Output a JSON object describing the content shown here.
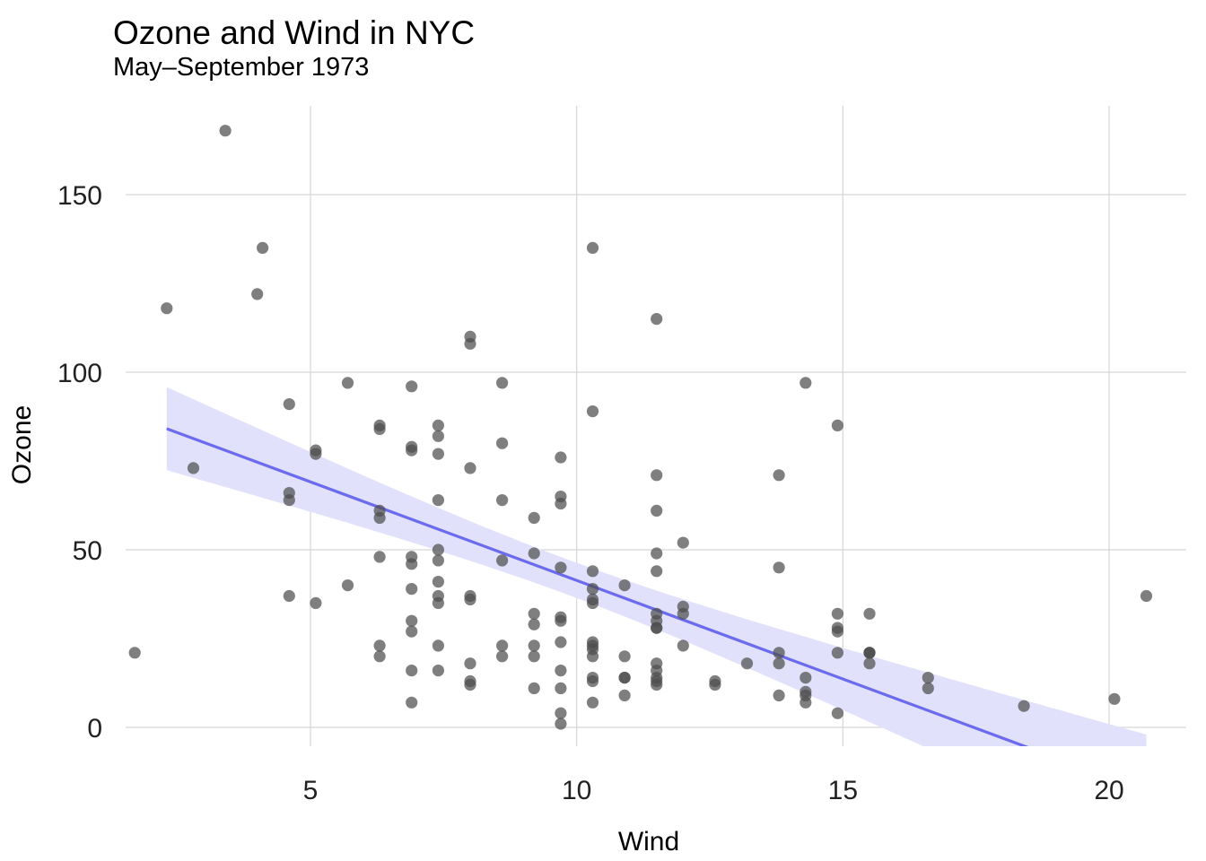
{
  "chart_data": {
    "type": "scatter",
    "title": "Ozone and Wind in NYC",
    "subtitle": "May–September 1973",
    "xlabel": "Wind",
    "ylabel": "Ozone",
    "xlim": [
      2.0,
      21.1
    ],
    "ylim": [
      -6,
      175
    ],
    "x_ticks": [
      5,
      10,
      15,
      20
    ],
    "y_ticks": [
      0,
      50,
      100,
      150
    ],
    "grid": true,
    "legend": "none",
    "colors": {
      "points": "#4d4d4d",
      "fit_line": "#6b6bef",
      "band": "#e1e1fb"
    },
    "points": [
      [
        7.4,
        41
      ],
      [
        8.0,
        36
      ],
      [
        12.6,
        12
      ],
      [
        11.5,
        18
      ],
      [
        8.6,
        23
      ],
      [
        20.1,
        8
      ],
      [
        9.7,
        16
      ],
      [
        9.2,
        11
      ],
      [
        10.9,
        14
      ],
      [
        13.2,
        18
      ],
      [
        11.5,
        14
      ],
      [
        12.0,
        34
      ],
      [
        18.4,
        6
      ],
      [
        11.5,
        30
      ],
      [
        9.7,
        11
      ],
      [
        9.7,
        1
      ],
      [
        16.6,
        11
      ],
      [
        9.7,
        4
      ],
      [
        12.0,
        32
      ],
      [
        7.4,
        23
      ],
      [
        13.8,
        45
      ],
      [
        11.5,
        115
      ],
      [
        8.0,
        37
      ],
      [
        14.9,
        4
      ],
      [
        20.7,
        37
      ],
      [
        9.2,
        29
      ],
      [
        11.5,
        71
      ],
      [
        10.3,
        39
      ],
      [
        6.3,
        23
      ],
      [
        1.7,
        21
      ],
      [
        4.6,
        37
      ],
      [
        6.3,
        20
      ],
      [
        8.0,
        12
      ],
      [
        8.0,
        13
      ],
      [
        10.3,
        135
      ],
      [
        11.5,
        49
      ],
      [
        14.9,
        32
      ],
      [
        8.6,
        64
      ],
      [
        5.7,
        40
      ],
      [
        7.4,
        77
      ],
      [
        8.6,
        97
      ],
      [
        14.3,
        97
      ],
      [
        14.9,
        85
      ],
      [
        14.3,
        10
      ],
      [
        6.9,
        27
      ],
      [
        10.3,
        7
      ],
      [
        6.3,
        48
      ],
      [
        5.1,
        35
      ],
      [
        11.5,
        61
      ],
      [
        6.9,
        79
      ],
      [
        9.7,
        63
      ],
      [
        11.5,
        16
      ],
      [
        8.6,
        80
      ],
      [
        8.0,
        108
      ],
      [
        8.6,
        20
      ],
      [
        12.0,
        52
      ],
      [
        7.4,
        82
      ],
      [
        7.4,
        50
      ],
      [
        7.4,
        64
      ],
      [
        9.2,
        59
      ],
      [
        6.9,
        39
      ],
      [
        13.8,
        9
      ],
      [
        7.4,
        16
      ],
      [
        4.0,
        122
      ],
      [
        10.3,
        89
      ],
      [
        8.0,
        110
      ],
      [
        11.5,
        44
      ],
      [
        11.5,
        28
      ],
      [
        9.7,
        65
      ],
      [
        2.8,
        73
      ],
      [
        3.4,
        168
      ],
      [
        4.1,
        135
      ],
      [
        6.9,
        78
      ],
      [
        9.7,
        45
      ],
      [
        10.3,
        44
      ],
      [
        11.5,
        28
      ],
      [
        6.3,
        85
      ],
      [
        6.9,
        96
      ],
      [
        8.0,
        73
      ],
      [
        8.6,
        47
      ],
      [
        9.7,
        24
      ],
      [
        9.2,
        32
      ],
      [
        13.8,
        21
      ],
      [
        11.5,
        13
      ],
      [
        10.3,
        23
      ],
      [
        14.3,
        7
      ],
      [
        14.9,
        21
      ],
      [
        5.7,
        97
      ],
      [
        9.7,
        30
      ],
      [
        16.6,
        14
      ],
      [
        12.6,
        13
      ],
      [
        8.0,
        18
      ],
      [
        10.3,
        24
      ],
      [
        4.6,
        91
      ],
      [
        6.3,
        59
      ],
      [
        10.9,
        9
      ],
      [
        9.2,
        20
      ],
      [
        10.9,
        40
      ],
      [
        12.0,
        23
      ],
      [
        9.7,
        31
      ],
      [
        15.5,
        18
      ],
      [
        10.9,
        14
      ],
      [
        10.3,
        14
      ],
      [
        10.3,
        13
      ],
      [
        11.5,
        12
      ],
      [
        10.3,
        20
      ],
      [
        2.3,
        118
      ],
      [
        4.6,
        66
      ],
      [
        13.8,
        18
      ],
      [
        6.9,
        30
      ],
      [
        10.9,
        20
      ],
      [
        14.3,
        9
      ],
      [
        15.5,
        21
      ],
      [
        13.8,
        71
      ],
      [
        14.9,
        27
      ],
      [
        15.5,
        32
      ],
      [
        4.6,
        64
      ],
      [
        5.1,
        78
      ],
      [
        5.1,
        77
      ],
      [
        6.3,
        84
      ],
      [
        6.3,
        61
      ],
      [
        6.9,
        46
      ],
      [
        6.9,
        48
      ],
      [
        6.9,
        7
      ],
      [
        7.4,
        35
      ],
      [
        7.4,
        47
      ],
      [
        7.4,
        85
      ],
      [
        9.2,
        49
      ],
      [
        10.3,
        36
      ],
      [
        10.3,
        35
      ],
      [
        11.5,
        32
      ],
      [
        15.5,
        21
      ],
      [
        14.3,
        14
      ],
      [
        15.5,
        21
      ],
      [
        9.2,
        23
      ],
      [
        6.9,
        16
      ],
      [
        7.4,
        37
      ],
      [
        9.7,
        76
      ],
      [
        10.3,
        22
      ],
      [
        14.9,
        28
      ]
    ],
    "fit": {
      "intercept": 96.87,
      "slope": -5.55,
      "x_range": [
        2.3,
        20.7
      ]
    }
  }
}
